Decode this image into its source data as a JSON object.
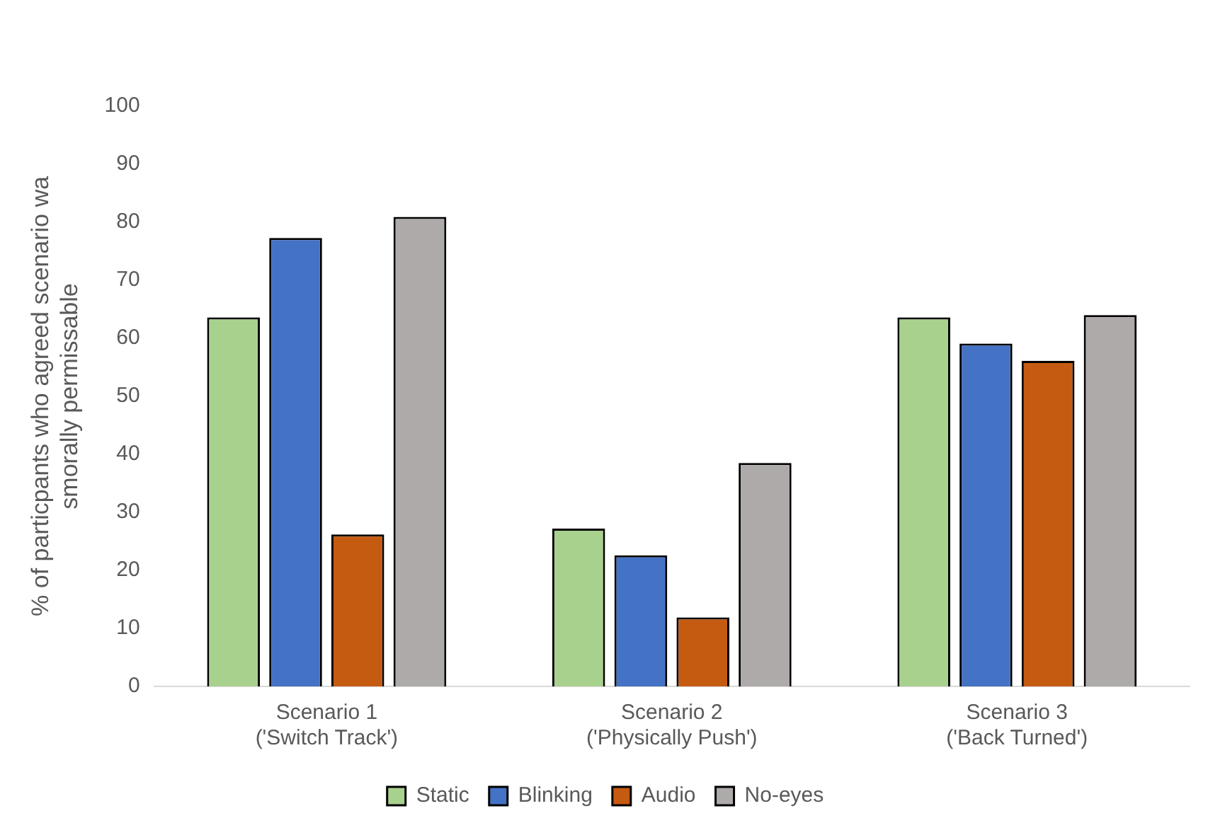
{
  "chart_data": {
    "type": "bar",
    "ylabel": "% of particpants who agreed scenario wa smorally permissable",
    "categories": [
      "Scenario 1 ('Switch Track')",
      "Scenario 2 ('Physically Push')",
      "Scenario 3 ('Back Turned')"
    ],
    "series": [
      {
        "name": "Static",
        "color": "#a9d18e",
        "values": [
          63.6,
          27.2,
          63.6
        ]
      },
      {
        "name": "Blinking",
        "color": "#4472c4",
        "values": [
          77.3,
          22.6,
          59.1
        ]
      },
      {
        "name": "Audio",
        "color": "#c55a11",
        "values": [
          26.2,
          11.9,
          56.1
        ]
      },
      {
        "name": "No-eyes",
        "color": "#aeaaaa",
        "values": [
          80.9,
          38.5,
          64
        ]
      }
    ],
    "ylim": [
      0,
      100
    ],
    "yticks": [
      0,
      10,
      20,
      30,
      40,
      50,
      60,
      70,
      80,
      90,
      100
    ],
    "grid": false,
    "legend": "bottom"
  }
}
